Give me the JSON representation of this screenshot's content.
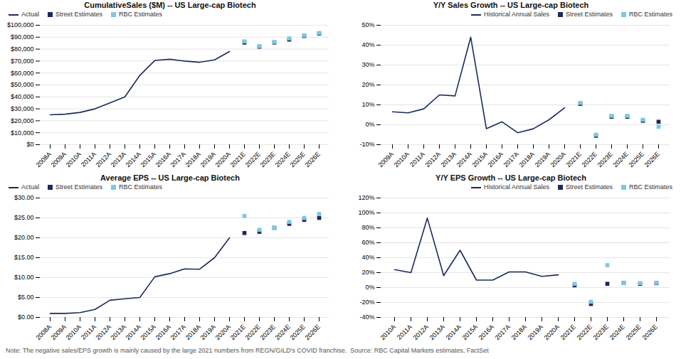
{
  "chart_data": [
    {
      "type": "line",
      "title": "CumulativeSales ($M) -- US Large-cap Biotech",
      "categories": [
        "2008A",
        "2009A",
        "2010A",
        "2011A",
        "2012A",
        "2013A",
        "2014A",
        "2015A",
        "2016A",
        "2017A",
        "2018A",
        "2019A",
        "2020A",
        "2021E",
        "2022E",
        "2023E",
        "2024E",
        "2025E",
        "2026E"
      ],
      "series": [
        {
          "name": "Actual",
          "type": "line",
          "color": "#1a2a5e",
          "values": [
            25000,
            25500,
            27000,
            30000,
            35000,
            40000,
            58000,
            70500,
            71500,
            70000,
            69000,
            71000,
            78000,
            null,
            null,
            null,
            null,
            null,
            null
          ]
        },
        {
          "name": "Street Estimates",
          "type": "scatter",
          "marker": "square",
          "color": "#1a2a5e",
          "values": [
            null,
            null,
            null,
            null,
            null,
            null,
            null,
            null,
            null,
            null,
            null,
            null,
            null,
            85500,
            82000,
            85500,
            88000,
            91000,
            93000
          ]
        },
        {
          "name": "RBC Estimates",
          "type": "scatter",
          "marker": "square",
          "color": "#7ec8e3",
          "values": [
            null,
            null,
            null,
            null,
            null,
            null,
            null,
            null,
            null,
            null,
            null,
            null,
            null,
            86500,
            82500,
            86000,
            89000,
            91500,
            93500
          ]
        }
      ],
      "ylim": [
        0,
        100000
      ],
      "yticks": [
        {
          "value": 0,
          "label": "$0"
        },
        {
          "value": 10000,
          "label": "$10,000"
        },
        {
          "value": 20000,
          "label": "$20,000"
        },
        {
          "value": 30000,
          "label": "$30,000"
        },
        {
          "value": 40000,
          "label": "$40,000"
        },
        {
          "value": 50000,
          "label": "$50,000"
        },
        {
          "value": 60000,
          "label": "$60,000"
        },
        {
          "value": 70000,
          "label": "$70,000"
        },
        {
          "value": 80000,
          "label": "$80,000"
        },
        {
          "value": 90000,
          "label": "$90,000"
        },
        {
          "value": 100000,
          "label": "$100,000"
        }
      ],
      "grid": true,
      "legend": "upper left"
    },
    {
      "type": "line",
      "title": "Y/Y Sales Growth -- US Large-cap Biotech",
      "categories": [
        "2009A",
        "2010A",
        "2011A",
        "2012A",
        "2013A",
        "2014A",
        "2015A",
        "2016A",
        "2017A",
        "2018A",
        "2019A",
        "2020A",
        "2021E",
        "2022E",
        "2023E",
        "2024E",
        "2025E",
        "2026E"
      ],
      "series": [
        {
          "name": "Historical Annual Sales",
          "type": "line",
          "color": "#1a2a5e",
          "values": [
            6.5,
            6.0,
            8.0,
            15.0,
            14.5,
            44.0,
            -2.0,
            1.5,
            -4.0,
            -2.0,
            2.5,
            8.5,
            null,
            null,
            null,
            null,
            null,
            null
          ]
        },
        {
          "name": "Street Estimates",
          "type": "scatter",
          "marker": "square",
          "color": "#1a2a5e",
          "values": [
            null,
            null,
            null,
            null,
            null,
            null,
            null,
            null,
            null,
            null,
            null,
            null,
            10.5,
            -5.5,
            4.0,
            4.0,
            2.0,
            1.5
          ]
        },
        {
          "name": "RBC Estimates",
          "type": "scatter",
          "marker": "square",
          "color": "#7ec8e3",
          "values": [
            null,
            null,
            null,
            null,
            null,
            null,
            null,
            null,
            null,
            null,
            null,
            null,
            11.0,
            -5.0,
            4.5,
            4.5,
            2.5,
            -1.0
          ]
        }
      ],
      "ylim": [
        -10,
        50
      ],
      "yticks": [
        {
          "value": -10,
          "label": "-10%"
        },
        {
          "value": 0,
          "label": "0%"
        },
        {
          "value": 10,
          "label": "10%"
        },
        {
          "value": 20,
          "label": "20%"
        },
        {
          "value": 30,
          "label": "30%"
        },
        {
          "value": 40,
          "label": "40%"
        },
        {
          "value": 50,
          "label": "50%"
        }
      ],
      "grid": true,
      "legend": "upper right"
    },
    {
      "type": "line",
      "title": "Average EPS -- US Large-cap Biotech",
      "categories": [
        "2008A",
        "2009A",
        "2010A",
        "2011A",
        "2012A",
        "2013A",
        "2014A",
        "2015A",
        "2016A",
        "2017A",
        "2018A",
        "2019A",
        "2020A",
        "2021E",
        "2022E",
        "2023E",
        "2024E",
        "2025E",
        "2026E"
      ],
      "series": [
        {
          "name": "Actual",
          "type": "line",
          "color": "#1a2a5e",
          "values": [
            1.0,
            1.0,
            1.2,
            2.0,
            4.3,
            4.7,
            5.0,
            10.2,
            11.0,
            12.2,
            12.1,
            15.0,
            20.0,
            null,
            null,
            null,
            null,
            null,
            null
          ]
        },
        {
          "name": "Street Estimates",
          "type": "scatter",
          "marker": "square",
          "color": "#1a2a5e",
          "values": [
            null,
            null,
            null,
            null,
            null,
            null,
            null,
            null,
            null,
            null,
            null,
            null,
            null,
            21.2,
            21.5,
            22.5,
            23.5,
            24.5,
            25.0
          ]
        },
        {
          "name": "RBC Estimates",
          "type": "scatter",
          "marker": "square",
          "color": "#7ec8e3",
          "values": [
            null,
            null,
            null,
            null,
            null,
            null,
            null,
            null,
            null,
            null,
            null,
            null,
            null,
            25.5,
            22.0,
            22.5,
            24.0,
            25.0,
            26.0
          ]
        }
      ],
      "ylim": [
        0,
        30
      ],
      "yticks": [
        {
          "value": 0,
          "label": "$0.00"
        },
        {
          "value": 5,
          "label": "$5.00"
        },
        {
          "value": 10,
          "label": "$10.00"
        },
        {
          "value": 15,
          "label": "$15.00"
        },
        {
          "value": 20,
          "label": "$20.00"
        },
        {
          "value": 25,
          "label": "$25.00"
        },
        {
          "value": 30,
          "label": "$30.00"
        }
      ],
      "grid": true,
      "legend": "upper left"
    },
    {
      "type": "line",
      "title": "Y/Y EPS Growth -- US Large-cap Biotech",
      "categories": [
        "2010A",
        "2011A",
        "2012A",
        "2013A",
        "2014A",
        "2015A",
        "2016A",
        "2017A",
        "2018A",
        "2019A",
        "2020A",
        "2021E",
        "2022E",
        "2023E",
        "2024E",
        "2025E",
        "2026E"
      ],
      "series": [
        {
          "name": "Historical Annual Sales",
          "type": "line",
          "color": "#1a2a5e",
          "values": [
            24.0,
            20.0,
            93.0,
            16.0,
            50.0,
            10.0,
            10.0,
            21.0,
            21.0,
            15.0,
            17.0,
            null,
            null,
            null,
            null,
            null,
            null
          ]
        },
        {
          "name": "Street Estimates",
          "type": "scatter",
          "marker": "square",
          "color": "#1a2a5e",
          "values": [
            null,
            null,
            null,
            null,
            null,
            null,
            null,
            null,
            null,
            null,
            null,
            3.0,
            -22.0,
            5.0,
            6.0,
            5.0,
            6.0
          ]
        },
        {
          "name": "RBC Estimates",
          "type": "scatter",
          "marker": "square",
          "color": "#7ec8e3",
          "values": [
            null,
            null,
            null,
            null,
            null,
            null,
            null,
            null,
            null,
            null,
            null,
            5.0,
            -19.0,
            30.0,
            6.0,
            6.0,
            6.5
          ]
        }
      ],
      "ylim": [
        -40,
        120
      ],
      "yticks": [
        {
          "value": -40,
          "label": "-40%"
        },
        {
          "value": -20,
          "label": "-20%"
        },
        {
          "value": 0,
          "label": "0%"
        },
        {
          "value": 20,
          "label": "20%"
        },
        {
          "value": 40,
          "label": "40%"
        },
        {
          "value": 60,
          "label": "60%"
        },
        {
          "value": 80,
          "label": "80%"
        },
        {
          "value": 100,
          "label": "100%"
        },
        {
          "value": 120,
          "label": "120%"
        }
      ],
      "grid": true,
      "legend": "upper right",
      "annotations": [
        "Note: The negative sales/EPS growth is mainly caused by the large 2021 numbers from REGN/GILD's COVID franchise.  Source: RBC Capital Markets estimates, FactSet"
      ]
    }
  ]
}
